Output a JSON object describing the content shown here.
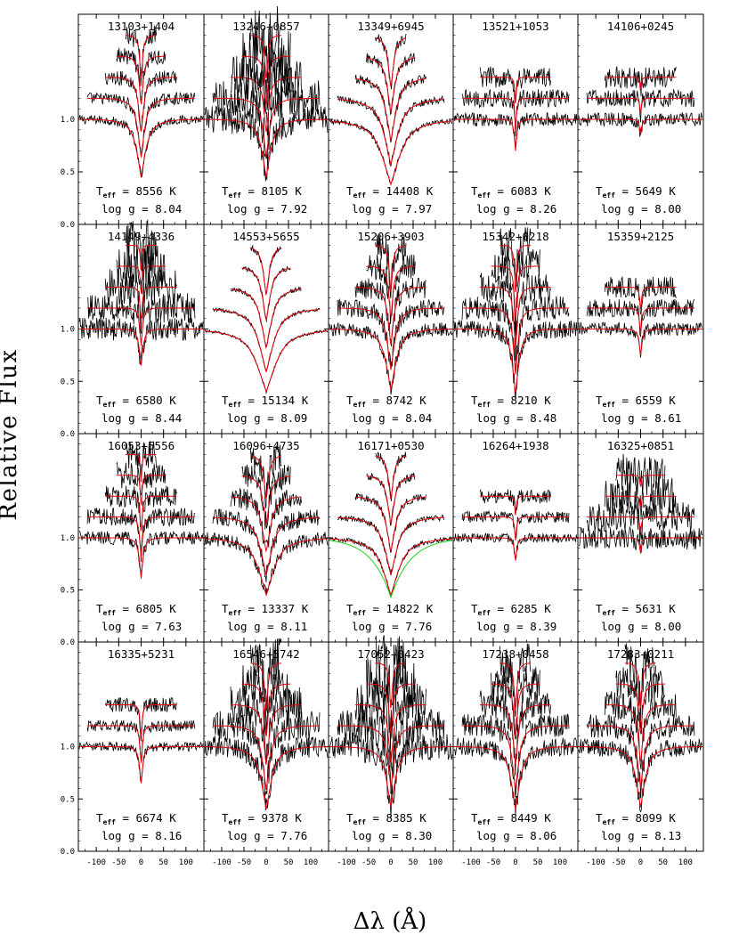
{
  "figure": {
    "ylabel": "Relative Flux",
    "xlabel": "Δλ (Å)"
  },
  "chart_data": {
    "type": "line",
    "layout": "4x5 grid of spectral line-fit panels, shared axes",
    "xlim": [
      -140,
      140
    ],
    "ylim": [
      0,
      2.0
    ],
    "xticks": [
      -100,
      -50,
      0,
      50,
      100
    ],
    "yticks": [
      0.0,
      0.5,
      1.0
    ],
    "xlabel": "Δλ (Å)",
    "ylabel": "Relative Flux",
    "series_colors": {
      "observed": "#000000",
      "model": "#e8000b",
      "alt_model": "#22cc22"
    },
    "panels": [
      {
        "name": "13103+1404",
        "teff": "8556",
        "logg": "8.04",
        "depth": 0.55,
        "width": 22,
        "noise": 0.02,
        "top": 0.85
      },
      {
        "name": "13246+0857",
        "teff": "8105",
        "logg": "7.92",
        "depth": 0.55,
        "width": 22,
        "noise": 0.06,
        "top": 0.85
      },
      {
        "name": "13349+6945",
        "teff": "14408",
        "logg": "7.97",
        "depth": 0.62,
        "width": 45,
        "noise": 0.012,
        "top": 0.85
      },
      {
        "name": "13521+1053",
        "teff": "6083",
        "logg": "8.26",
        "depth": 0.3,
        "width": 6,
        "noise": 0.03,
        "top": 0.5
      },
      {
        "name": "14106+0245",
        "teff": "5649",
        "logg": "8.00",
        "depth": 0.15,
        "width": 5,
        "noise": 0.03,
        "top": 0.5
      },
      {
        "name": "14149+4336",
        "teff": "6580",
        "logg": "8.44",
        "depth": 0.35,
        "width": 9,
        "noise": 0.05,
        "top": 0.85
      },
      {
        "name": "14553+5655",
        "teff": "15134",
        "logg": "8.09",
        "depth": 0.6,
        "width": 48,
        "noise": 0.006,
        "top": 0.85
      },
      {
        "name": "15206+3903",
        "teff": "8742",
        "logg": "8.04",
        "depth": 0.58,
        "width": 25,
        "noise": 0.03,
        "top": 0.85
      },
      {
        "name": "15342+0218",
        "teff": "8210",
        "logg": "8.48",
        "depth": 0.62,
        "width": 16,
        "noise": 0.04,
        "top": 0.85
      },
      {
        "name": "15359+2125",
        "teff": "6559",
        "logg": "8.61",
        "depth": 0.25,
        "width": 7,
        "noise": 0.03,
        "top": 0.5
      },
      {
        "name": "16053+5556",
        "teff": "6805",
        "logg": "7.63",
        "depth": 0.38,
        "width": 9,
        "noise": 0.03,
        "top": 0.85
      },
      {
        "name": "16096+4735",
        "teff": "13337",
        "logg": "8.11",
        "depth": 0.55,
        "width": 38,
        "noise": 0.03,
        "top": 0.85
      },
      {
        "name": "16171+0530",
        "teff": "14822",
        "logg": "7.76",
        "depth": 0.55,
        "width": 40,
        "noise": 0.01,
        "top": 0.85,
        "alt": true
      },
      {
        "name": "16264+1938",
        "teff": "6285",
        "logg": "8.39",
        "depth": 0.22,
        "width": 6,
        "noise": 0.02,
        "top": 0.5
      },
      {
        "name": "16325+0851",
        "teff": "5631",
        "logg": "8.00",
        "depth": 0.15,
        "width": 5,
        "noise": 0.05,
        "top": 0.6
      },
      {
        "name": "16335+5231",
        "teff": "6674",
        "logg": "8.16",
        "depth": 0.35,
        "width": 8,
        "noise": 0.02,
        "top": 0.5
      },
      {
        "name": "16546+5742",
        "teff": "9378",
        "logg": "7.76",
        "depth": 0.6,
        "width": 25,
        "noise": 0.05,
        "top": 0.85
      },
      {
        "name": "17052+0423",
        "teff": "8385",
        "logg": "8.30",
        "depth": 0.58,
        "width": 22,
        "noise": 0.06,
        "top": 0.85
      },
      {
        "name": "17238+0458",
        "teff": "8449",
        "logg": "8.06",
        "depth": 0.6,
        "width": 22,
        "noise": 0.04,
        "top": 0.85
      },
      {
        "name": "17283+0211",
        "teff": "8099",
        "logg": "8.13",
        "depth": 0.58,
        "width": 22,
        "noise": 0.04,
        "top": 0.85
      }
    ]
  }
}
